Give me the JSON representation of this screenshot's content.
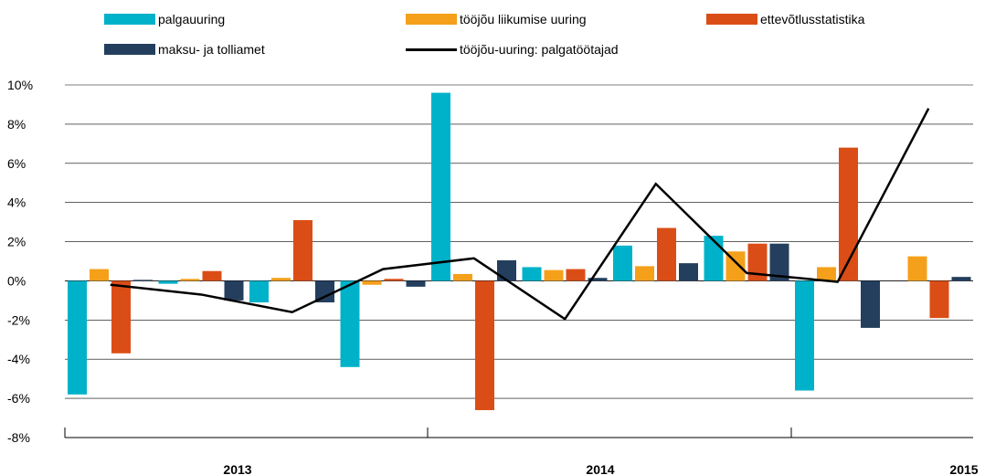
{
  "chart_data": {
    "type": "bar",
    "x": [
      1,
      2,
      3,
      4,
      5,
      6,
      7,
      8,
      9,
      10
    ],
    "year_labels": [
      "2013",
      "2014",
      "2015"
    ],
    "yticks": [
      "10%",
      "8%",
      "6%",
      "4%",
      "2%",
      "0%",
      "-2%",
      "-4%",
      "-6%",
      "-8%"
    ],
    "ylim": [
      -8,
      10
    ],
    "grid": true,
    "legend_position": "top",
    "series": [
      {
        "name": "palgauuring",
        "kind": "bar",
        "color": "#00b2c9",
        "values": [
          -5.8,
          -0.15,
          -1.1,
          -4.4,
          9.6,
          0.7,
          1.8,
          2.3,
          -5.6,
          null
        ]
      },
      {
        "name": "tööjõu liikumise uuring",
        "kind": "bar",
        "color": "#f5a01a",
        "values": [
          0.6,
          0.1,
          0.15,
          -0.2,
          0.35,
          0.55,
          0.75,
          1.5,
          0.7,
          1.25
        ]
      },
      {
        "name": "ettevõtlusstatistika",
        "kind": "bar",
        "color": "#db4d16",
        "values": [
          -3.7,
          0.5,
          3.1,
          0.1,
          -6.6,
          0.6,
          2.7,
          1.9,
          6.8,
          -1.9
        ]
      },
      {
        "name": "maksu- ja tolliamet",
        "kind": "bar",
        "color": "#243f5e",
        "values": [
          0.05,
          -1.0,
          -1.1,
          -0.3,
          1.05,
          0.15,
          0.9,
          1.9,
          -2.4,
          0.2
        ]
      },
      {
        "name": "tööjõu-uuring: palgatöötajad",
        "kind": "line",
        "color": "#000000",
        "values": [
          -0.2,
          -0.7,
          -1.6,
          0.6,
          1.15,
          -1.95,
          4.95,
          0.4,
          -0.05,
          8.8
        ]
      }
    ]
  }
}
